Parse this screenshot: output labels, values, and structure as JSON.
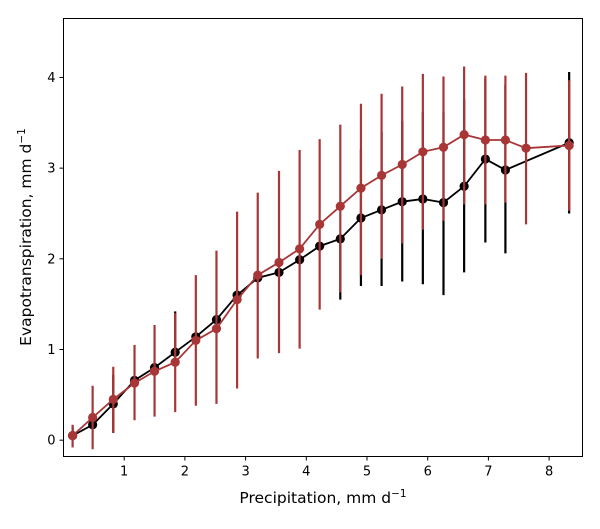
{
  "chart_data": {
    "type": "line",
    "title": "",
    "xlabel": "Precipitation,  mm d",
    "xlabel_sup": "−1",
    "ylabel": "Evapotranspiration,  mm d",
    "ylabel_sup": "−1",
    "xlim": [
      0.0,
      8.55
    ],
    "ylim": [
      -0.18,
      4.65
    ],
    "xticks": [
      1,
      2,
      3,
      4,
      5,
      6,
      7,
      8
    ],
    "yticks": [
      0,
      1,
      2,
      3,
      4
    ],
    "grid": false,
    "legend": "none",
    "series": [
      {
        "color": "#000000",
        "x": [
          0.15,
          0.48,
          0.82,
          1.17,
          1.5,
          1.84,
          2.18,
          2.52,
          2.86,
          3.2,
          3.55,
          3.89,
          4.22,
          4.56,
          4.9,
          5.24,
          5.58,
          5.92,
          6.26,
          6.6,
          6.95,
          7.28,
          8.33
        ],
        "y": [
          0.05,
          0.17,
          0.4,
          0.66,
          0.8,
          0.97,
          1.14,
          1.33,
          1.6,
          1.79,
          1.85,
          1.99,
          2.14,
          2.22,
          2.45,
          2.54,
          2.63,
          2.66,
          2.62,
          2.8,
          3.1,
          2.98,
          3.28
        ],
        "err_low": [
          0.15,
          0.17,
          0.08,
          0.66,
          0.8,
          0.97,
          1.14,
          1.33,
          1.6,
          1.79,
          1.85,
          1.99,
          2.14,
          1.55,
          1.7,
          1.7,
          1.75,
          1.72,
          1.6,
          1.85,
          2.18,
          2.06,
          2.5
        ],
        "err_high": [
          0.05,
          0.25,
          0.72,
          0.66,
          0.8,
          1.42,
          1.14,
          1.33,
          1.6,
          1.79,
          1.85,
          1.99,
          2.14,
          2.22,
          3.21,
          3.4,
          3.52,
          3.62,
          3.62,
          3.76,
          4.0,
          3.92,
          4.06
        ]
      },
      {
        "color": "#a83636",
        "x": [
          0.15,
          0.48,
          0.82,
          1.17,
          1.5,
          1.84,
          2.18,
          2.52,
          2.86,
          3.2,
          3.55,
          3.89,
          4.22,
          4.56,
          4.9,
          5.24,
          5.58,
          5.92,
          6.26,
          6.6,
          6.95,
          7.28,
          7.62,
          8.33
        ],
        "y": [
          0.05,
          0.25,
          0.45,
          0.63,
          0.76,
          0.86,
          1.1,
          1.23,
          1.55,
          1.82,
          1.96,
          2.11,
          2.38,
          2.58,
          2.78,
          2.92,
          3.04,
          3.18,
          3.23,
          3.37,
          3.31,
          3.31,
          3.22,
          3.25
        ],
        "err_low": [
          -0.08,
          -0.1,
          0.08,
          0.22,
          0.26,
          0.31,
          0.38,
          0.4,
          0.57,
          0.9,
          0.96,
          1.01,
          1.44,
          1.63,
          1.82,
          2.0,
          2.17,
          2.32,
          2.42,
          2.6,
          2.6,
          2.62,
          2.38,
          2.53
        ],
        "err_high": [
          0.17,
          0.6,
          0.81,
          1.05,
          1.27,
          1.4,
          1.82,
          2.09,
          2.52,
          2.73,
          2.97,
          3.2,
          3.32,
          3.48,
          3.71,
          3.82,
          3.9,
          4.04,
          4.01,
          4.12,
          4.02,
          4.02,
          4.05,
          3.97
        ]
      }
    ]
  }
}
